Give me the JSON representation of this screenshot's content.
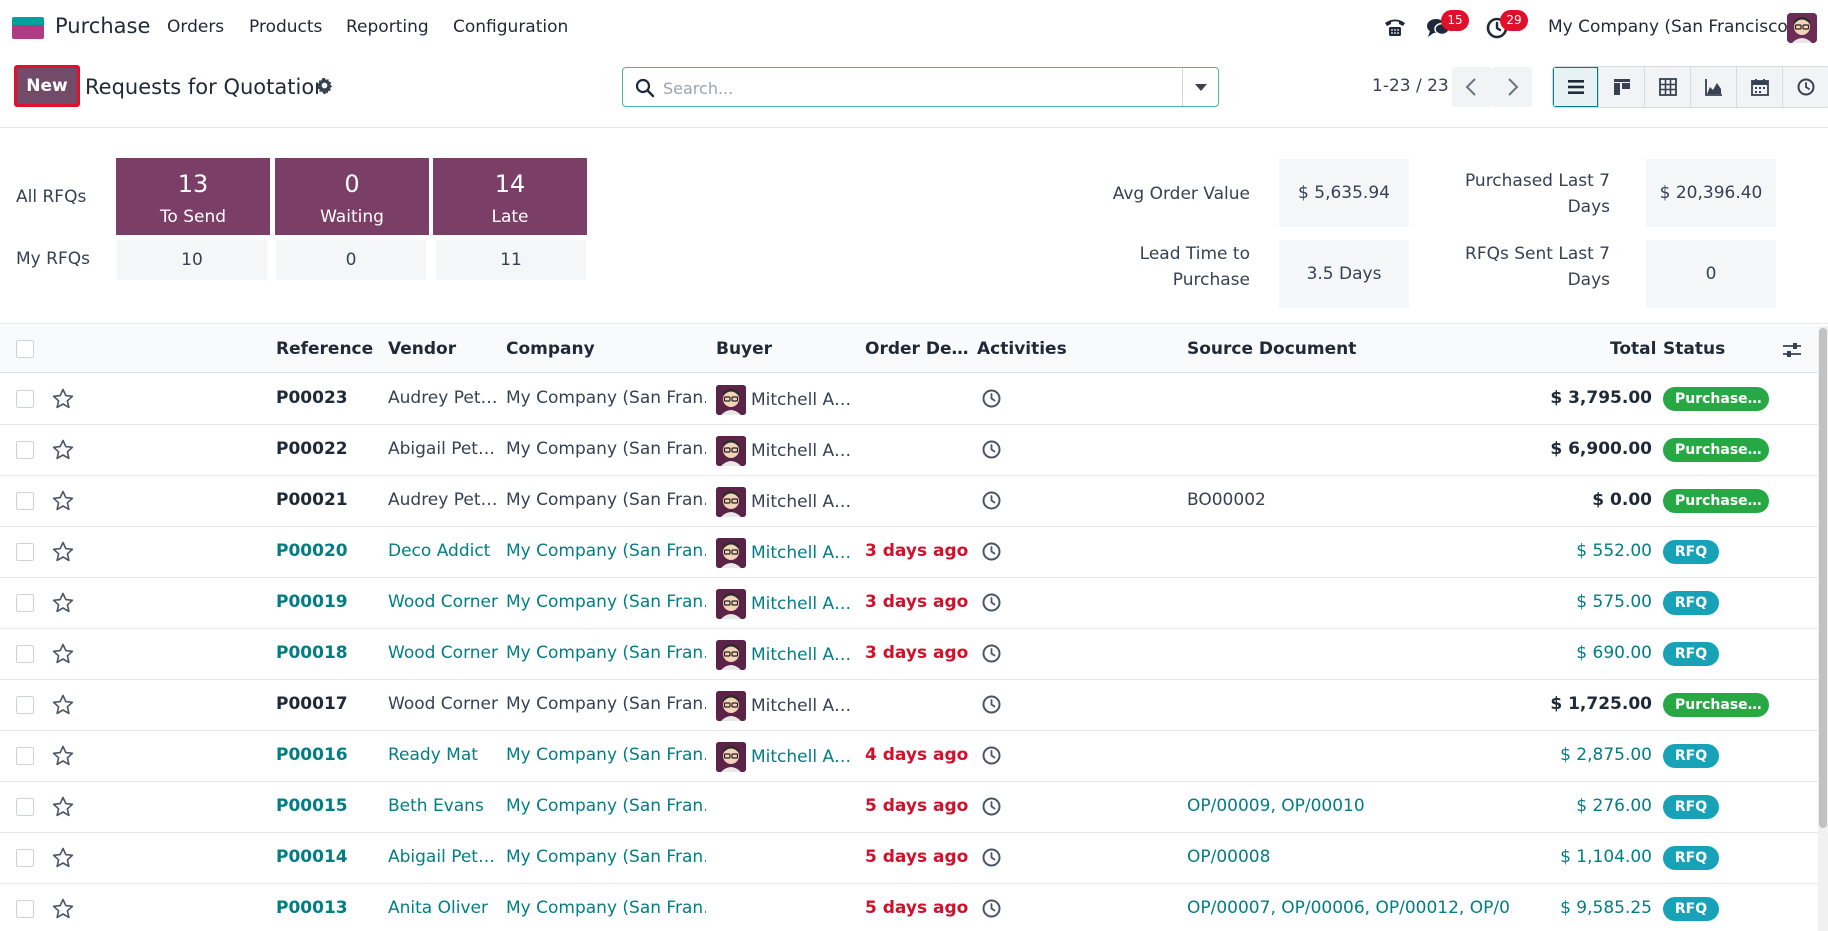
{
  "nav": {
    "app_name": "Purchase",
    "menus": [
      "Orders",
      "Products",
      "Reporting",
      "Configuration"
    ],
    "messages_badge": "15",
    "activities_badge": "29",
    "company": "My Company (San Francisco)"
  },
  "control": {
    "new_label": "New",
    "title": "Requests for Quotation",
    "search_placeholder": "Search...",
    "pager": "1-23 / 23"
  },
  "dashboard": {
    "all_label": "All RFQs",
    "my_label": "My RFQs",
    "tiles": [
      {
        "num": "13",
        "label": "To Send",
        "my": "10"
      },
      {
        "num": "0",
        "label": "Waiting",
        "my": "0"
      },
      {
        "num": "14",
        "label": "Late",
        "my": "11"
      }
    ],
    "kpis": {
      "avg_order_label": "Avg Order Value",
      "avg_order_value": "$ 5,635.94",
      "purchased_label_1": "Purchased Last 7",
      "purchased_label_2": "Days",
      "purchased_value": "$ 20,396.40",
      "lead_label_1": "Lead Time to",
      "lead_label_2": "Purchase",
      "lead_value": "3.5 Days",
      "sent_label_1": "RFQs Sent Last 7",
      "sent_label_2": "Days",
      "sent_value": "0"
    }
  },
  "list": {
    "headers": {
      "reference": "Reference",
      "vendor": "Vendor",
      "company": "Company",
      "buyer": "Buyer",
      "order_deadline": "Order De…",
      "activities": "Activities",
      "source": "Source Document",
      "total": "Total",
      "status": "Status"
    },
    "rows": [
      {
        "ref": "P00023",
        "vendor": "Audrey Pet…",
        "company": "My Company (San Fran…",
        "buyer": "Mitchell A…",
        "deadline": "",
        "source": "",
        "total": "$ 3,795.00",
        "status": "Purchase…"
      },
      {
        "ref": "P00022",
        "vendor": "Abigail Pet…",
        "company": "My Company (San Fran…",
        "buyer": "Mitchell A…",
        "deadline": "",
        "source": "",
        "total": "$ 6,900.00",
        "status": "Purchase…"
      },
      {
        "ref": "P00021",
        "vendor": "Audrey Pet…",
        "company": "My Company (San Fran…",
        "buyer": "Mitchell A…",
        "deadline": "",
        "source": "BO00002",
        "total": "$ 0.00",
        "status": "Purchase…"
      },
      {
        "ref": "P00020",
        "vendor": "Deco Addict",
        "company": "My Company (San Fran…",
        "buyer": "Mitchell A…",
        "deadline": "3 days ago",
        "source": "",
        "total": "$ 552.00",
        "status": "RFQ"
      },
      {
        "ref": "P00019",
        "vendor": "Wood Corner",
        "company": "My Company (San Fran…",
        "buyer": "Mitchell A…",
        "deadline": "3 days ago",
        "source": "",
        "total": "$ 575.00",
        "status": "RFQ"
      },
      {
        "ref": "P00018",
        "vendor": "Wood Corner",
        "company": "My Company (San Fran…",
        "buyer": "Mitchell A…",
        "deadline": "3 days ago",
        "source": "",
        "total": "$ 690.00",
        "status": "RFQ"
      },
      {
        "ref": "P00017",
        "vendor": "Wood Corner",
        "company": "My Company (San Fran…",
        "buyer": "Mitchell A…",
        "deadline": "",
        "source": "",
        "total": "$ 1,725.00",
        "status": "Purchase…"
      },
      {
        "ref": "P00016",
        "vendor": "Ready Mat",
        "company": "My Company (San Fran…",
        "buyer": "Mitchell A…",
        "deadline": "4 days ago",
        "source": "",
        "total": "$ 2,875.00",
        "status": "RFQ"
      },
      {
        "ref": "P00015",
        "vendor": "Beth Evans",
        "company": "My Company (San Fran…",
        "buyer": "",
        "deadline": "5 days ago",
        "source": "OP/00009, OP/00010",
        "total": "$ 276.00",
        "status": "RFQ"
      },
      {
        "ref": "P00014",
        "vendor": "Abigail Pet…",
        "company": "My Company (San Fran…",
        "buyer": "",
        "deadline": "5 days ago",
        "source": "OP/00008",
        "total": "$ 1,104.00",
        "status": "RFQ"
      },
      {
        "ref": "P00013",
        "vendor": "Anita Oliver",
        "company": "My Company (San Fran…",
        "buyer": "",
        "deadline": "5 days ago",
        "source": "OP/00007, OP/00006, OP/00012, OP/0…",
        "total": "$ 9,585.25",
        "status": "RFQ"
      }
    ]
  }
}
